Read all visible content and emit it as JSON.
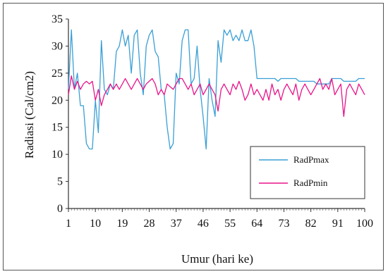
{
  "chart_data": {
    "type": "line",
    "title": "",
    "xlabel": "Umur (hari ke)",
    "ylabel": "Radiasi (Cal/cm2)",
    "xlim": [
      1,
      100
    ],
    "ylim": [
      0,
      35
    ],
    "x_ticks": [
      1,
      10,
      19,
      28,
      37,
      46,
      55,
      64,
      73,
      82,
      91,
      100
    ],
    "y_ticks": [
      0,
      5,
      10,
      15,
      20,
      25,
      30,
      35
    ],
    "grid": false,
    "legend_position": "bottom-right",
    "series": [
      {
        "name": "RadPmax",
        "color": "#3a9fd6",
        "points": [
          [
            1,
            22
          ],
          [
            2,
            33
          ],
          [
            3,
            22
          ],
          [
            4,
            25
          ],
          [
            5,
            19
          ],
          [
            6,
            19
          ],
          [
            7,
            12
          ],
          [
            8,
            11
          ],
          [
            9,
            11
          ],
          [
            10,
            20
          ],
          [
            11,
            14
          ],
          [
            12,
            31
          ],
          [
            13,
            22
          ],
          [
            14,
            21
          ],
          [
            15,
            23
          ],
          [
            16,
            22
          ],
          [
            17,
            29
          ],
          [
            18,
            30
          ],
          [
            19,
            33
          ],
          [
            20,
            30
          ],
          [
            21,
            32
          ],
          [
            22,
            25
          ],
          [
            23,
            32
          ],
          [
            24,
            33
          ],
          [
            25,
            25
          ],
          [
            26,
            21
          ],
          [
            27,
            30
          ],
          [
            28,
            32
          ],
          [
            29,
            33
          ],
          [
            30,
            29
          ],
          [
            31,
            28
          ],
          [
            32,
            22
          ],
          [
            33,
            21
          ],
          [
            34,
            15
          ],
          [
            35,
            11
          ],
          [
            36,
            12
          ],
          [
            37,
            25
          ],
          [
            38,
            23
          ],
          [
            39,
            31
          ],
          [
            40,
            33
          ],
          [
            41,
            33
          ],
          [
            42,
            23
          ],
          [
            43,
            24
          ],
          [
            44,
            30
          ],
          [
            45,
            22
          ],
          [
            46,
            17
          ],
          [
            47,
            11
          ],
          [
            48,
            24
          ],
          [
            49,
            20
          ],
          [
            50,
            17
          ],
          [
            51,
            31
          ],
          [
            52,
            27
          ],
          [
            53,
            33
          ],
          [
            54,
            32
          ],
          [
            55,
            33
          ],
          [
            56,
            31
          ],
          [
            57,
            32
          ],
          [
            58,
            31
          ],
          [
            59,
            33
          ],
          [
            60,
            31
          ],
          [
            61,
            31
          ],
          [
            62,
            33
          ],
          [
            63,
            30
          ],
          [
            64,
            24
          ],
          [
            65,
            24
          ],
          [
            66,
            24
          ],
          [
            67,
            24
          ],
          [
            68,
            24
          ],
          [
            69,
            24
          ],
          [
            70,
            24
          ],
          [
            71,
            23.5
          ],
          [
            72,
            24
          ],
          [
            73,
            24
          ],
          [
            74,
            24
          ],
          [
            75,
            24
          ],
          [
            76,
            24
          ],
          [
            77,
            24
          ],
          [
            78,
            23.5
          ],
          [
            79,
            23.5
          ],
          [
            80,
            23.5
          ],
          [
            81,
            23.5
          ],
          [
            82,
            23.5
          ],
          [
            83,
            23.5
          ],
          [
            84,
            23
          ],
          [
            85,
            23
          ],
          [
            86,
            23
          ],
          [
            87,
            23
          ],
          [
            88,
            23
          ],
          [
            89,
            24
          ],
          [
            90,
            24
          ],
          [
            91,
            24
          ],
          [
            92,
            24
          ],
          [
            93,
            23.5
          ],
          [
            94,
            23.5
          ],
          [
            95,
            23.5
          ],
          [
            96,
            23.5
          ],
          [
            97,
            23.5
          ],
          [
            98,
            24
          ],
          [
            99,
            24
          ],
          [
            100,
            24
          ]
        ]
      },
      {
        "name": "RadPmin",
        "color": "#e8158a",
        "points": [
          [
            1,
            21
          ],
          [
            2,
            24.5
          ],
          [
            3,
            22
          ],
          [
            4,
            23.5
          ],
          [
            5,
            22
          ],
          [
            6,
            23
          ],
          [
            7,
            23.5
          ],
          [
            8,
            23
          ],
          [
            9,
            23.5
          ],
          [
            10,
            20
          ],
          [
            11,
            22
          ],
          [
            12,
            19
          ],
          [
            13,
            21
          ],
          [
            14,
            22
          ],
          [
            15,
            23
          ],
          [
            16,
            22
          ],
          [
            17,
            23
          ],
          [
            18,
            22
          ],
          [
            19,
            23
          ],
          [
            20,
            24
          ],
          [
            21,
            23
          ],
          [
            22,
            22
          ],
          [
            23,
            23
          ],
          [
            24,
            24
          ],
          [
            25,
            23
          ],
          [
            26,
            22
          ],
          [
            27,
            23
          ],
          [
            28,
            23.5
          ],
          [
            29,
            24
          ],
          [
            30,
            23
          ],
          [
            31,
            21
          ],
          [
            32,
            22
          ],
          [
            33,
            21
          ],
          [
            34,
            23
          ],
          [
            35,
            22.5
          ],
          [
            36,
            22
          ],
          [
            37,
            23
          ],
          [
            38,
            24
          ],
          [
            39,
            24
          ],
          [
            40,
            23
          ],
          [
            41,
            22
          ],
          [
            42,
            23
          ],
          [
            43,
            21
          ],
          [
            44,
            22
          ],
          [
            45,
            23
          ],
          [
            46,
            21
          ],
          [
            47,
            22
          ],
          [
            48,
            23
          ],
          [
            49,
            22
          ],
          [
            50,
            21
          ],
          [
            51,
            18
          ],
          [
            52,
            22
          ],
          [
            53,
            23
          ],
          [
            54,
            22
          ],
          [
            55,
            21
          ],
          [
            56,
            23
          ],
          [
            57,
            22
          ],
          [
            58,
            23.5
          ],
          [
            59,
            22
          ],
          [
            60,
            20
          ],
          [
            61,
            21
          ],
          [
            62,
            23
          ],
          [
            63,
            21
          ],
          [
            64,
            22
          ],
          [
            65,
            21
          ],
          [
            66,
            20
          ],
          [
            67,
            22
          ],
          [
            68,
            20
          ],
          [
            69,
            23
          ],
          [
            70,
            21
          ],
          [
            71,
            22
          ],
          [
            72,
            20
          ],
          [
            73,
            22
          ],
          [
            74,
            23
          ],
          [
            75,
            22
          ],
          [
            76,
            21
          ],
          [
            77,
            23
          ],
          [
            78,
            20
          ],
          [
            79,
            22
          ],
          [
            80,
            23
          ],
          [
            81,
            22
          ],
          [
            82,
            21
          ],
          [
            83,
            22
          ],
          [
            84,
            23
          ],
          [
            85,
            24
          ],
          [
            86,
            22
          ],
          [
            87,
            23
          ],
          [
            88,
            22
          ],
          [
            89,
            24
          ],
          [
            90,
            21
          ],
          [
            91,
            22
          ],
          [
            92,
            23
          ],
          [
            93,
            17
          ],
          [
            94,
            22
          ],
          [
            95,
            23
          ],
          [
            96,
            22
          ],
          [
            97,
            21
          ],
          [
            98,
            23
          ],
          [
            99,
            22
          ],
          [
            100,
            21
          ]
        ]
      }
    ]
  }
}
